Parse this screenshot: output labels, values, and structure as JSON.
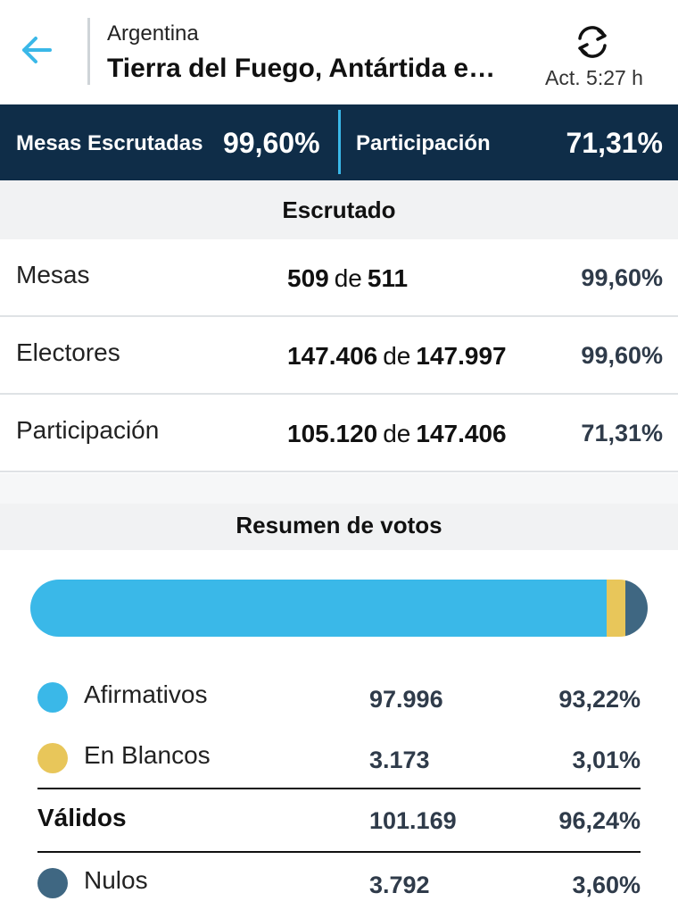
{
  "header": {
    "country": "Argentina",
    "region": "Tierra del Fuego, Antártida e I...",
    "update_label": "Act. 5:27 h",
    "back_icon": "arrow-left-icon",
    "refresh_icon": "refresh-icon",
    "accent_color": "#3ab8e8"
  },
  "summary_bar": {
    "mesas_label": "Mesas Escrutadas",
    "mesas_value": "99,60%",
    "participacion_label": "Participación",
    "participacion_value": "71,31%",
    "background": "#0f2d48"
  },
  "escrutado": {
    "title": "Escrutado",
    "rows": [
      {
        "label": "Mesas",
        "count": "509",
        "sep": "de",
        "total": "511",
        "pct": "99,60%"
      },
      {
        "label": "Electores",
        "count": "147.406",
        "sep": "de",
        "total": "147.997",
        "pct": "99,60%"
      },
      {
        "label": "Participación",
        "count": "105.120",
        "sep": "de",
        "total": "147.406",
        "pct": "71,31%"
      }
    ]
  },
  "resumen": {
    "title": "Resumen de votos",
    "bar": [
      {
        "name": "Afirmativos",
        "share": 93.22,
        "color": "#3ab8e8"
      },
      {
        "name": "En Blancos",
        "share": 3.01,
        "color": "#e8c65a"
      },
      {
        "name": "Nulos",
        "share": 3.6,
        "color": "#3f6782"
      }
    ],
    "items": [
      {
        "name": "Afirmativos",
        "value": "97.996",
        "pct": "93,22%",
        "color": "#3ab8e8"
      },
      {
        "name": "En Blancos",
        "value": "3.173",
        "pct": "3,01%",
        "color": "#e8c65a"
      },
      {
        "name": "Válidos",
        "value": "101.169",
        "pct": "96,24%"
      },
      {
        "name": "Nulos",
        "value": "3.792",
        "pct": "3,60%",
        "color": "#3f6782"
      }
    ]
  }
}
